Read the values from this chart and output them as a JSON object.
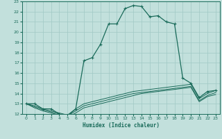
{
  "xlabel": "Humidex (Indice chaleur)",
  "bg_color": "#c2e0dc",
  "line_color": "#1a6b5a",
  "grid_color": "#a0c8c4",
  "xlim": [
    -0.5,
    23.5
  ],
  "ylim": [
    12,
    23
  ],
  "xticks": [
    0,
    1,
    2,
    3,
    4,
    5,
    6,
    7,
    8,
    9,
    10,
    11,
    12,
    13,
    14,
    15,
    16,
    17,
    18,
    19,
    20,
    21,
    22,
    23
  ],
  "yticks": [
    12,
    13,
    14,
    15,
    16,
    17,
    18,
    19,
    20,
    21,
    22,
    23
  ],
  "line1_x": [
    0,
    1,
    2,
    3,
    4,
    5,
    6,
    7,
    8,
    9,
    10,
    11,
    12,
    13,
    14,
    15,
    16,
    17,
    18,
    19,
    20,
    21,
    22,
    23
  ],
  "line1_y": [
    13.0,
    13.0,
    12.5,
    12.5,
    12.0,
    11.8,
    12.5,
    17.2,
    17.5,
    18.8,
    20.8,
    20.8,
    22.3,
    22.6,
    22.5,
    21.5,
    21.6,
    21.0,
    20.8,
    15.5,
    15.0,
    13.6,
    14.2,
    14.3
  ],
  "line2_x": [
    0,
    1,
    2,
    3,
    4,
    5,
    6,
    7,
    8,
    9,
    10,
    11,
    12,
    13,
    14,
    15,
    16,
    17,
    18,
    19,
    20,
    21,
    22,
    23
  ],
  "line2_y": [
    13.0,
    12.8,
    12.5,
    12.3,
    12.1,
    11.9,
    12.5,
    13.0,
    13.2,
    13.4,
    13.6,
    13.8,
    14.0,
    14.2,
    14.3,
    14.4,
    14.5,
    14.6,
    14.7,
    14.8,
    14.9,
    13.5,
    14.0,
    14.3
  ],
  "line3_x": [
    0,
    1,
    2,
    3,
    4,
    5,
    6,
    7,
    8,
    9,
    10,
    11,
    12,
    13,
    14,
    15,
    16,
    17,
    18,
    19,
    20,
    21,
    22,
    23
  ],
  "line3_y": [
    13.0,
    12.7,
    12.4,
    12.2,
    12.0,
    11.8,
    12.3,
    12.8,
    13.0,
    13.2,
    13.4,
    13.6,
    13.8,
    14.0,
    14.1,
    14.2,
    14.3,
    14.4,
    14.5,
    14.6,
    14.7,
    13.3,
    13.8,
    14.1
  ],
  "line4_x": [
    0,
    1,
    2,
    3,
    4,
    5,
    6,
    7,
    8,
    9,
    10,
    11,
    12,
    13,
    14,
    15,
    16,
    17,
    18,
    19,
    20,
    21,
    22,
    23
  ],
  "line4_y": [
    13.0,
    12.6,
    12.3,
    12.1,
    11.9,
    11.7,
    12.1,
    12.6,
    12.8,
    13.0,
    13.2,
    13.4,
    13.6,
    13.8,
    14.0,
    14.1,
    14.2,
    14.3,
    14.4,
    14.5,
    14.6,
    13.2,
    13.7,
    13.9
  ]
}
